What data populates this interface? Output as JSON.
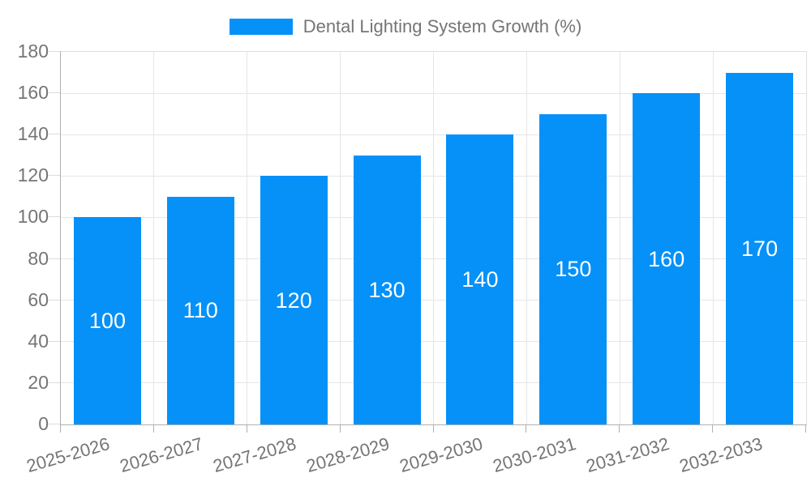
{
  "chart_data": {
    "type": "bar",
    "title": "Dental Lighting System Growth (%)",
    "legend_position": "top",
    "categories": [
      "2025-2026",
      "2026-2027",
      "2027-2028",
      "2028-2029",
      "2029-2030",
      "2030-2031",
      "2031-2032",
      "2032-2033"
    ],
    "values": [
      100,
      110,
      120,
      130,
      140,
      150,
      160,
      170
    ],
    "series_name": "Dental Lighting System Growth (%)",
    "xlabel": "",
    "ylabel": "",
    "ylim": [
      0,
      180
    ],
    "ytick_step": 20,
    "yticks": [
      0,
      20,
      40,
      60,
      80,
      100,
      120,
      140,
      160,
      180
    ],
    "grid": true,
    "bar_labels_shown": true,
    "colors": {
      "bar": "#0591f8",
      "bar_label_text": "#ffffff",
      "axis_text": "#757575",
      "legend_text": "#757575",
      "gridline": "#e6e6e6",
      "axis_line": "#b0b0b0",
      "background": "#ffffff"
    }
  }
}
